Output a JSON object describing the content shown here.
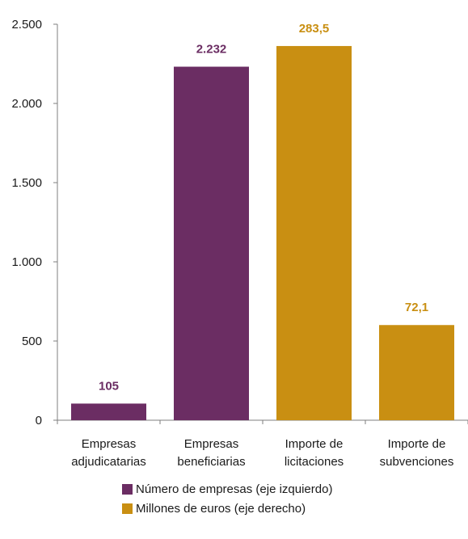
{
  "chart_data": {
    "type": "bar",
    "categories": [
      [
        "Empresas",
        "adjudicatarias"
      ],
      [
        "Empresas",
        "beneficiarias"
      ],
      [
        "Importe de",
        "licitaciones"
      ],
      [
        "Importe de",
        "subvenciones"
      ]
    ],
    "series": [
      {
        "name": "Número de empresas (eje izquierdo)",
        "axis": "left",
        "color": "#6b2d63",
        "values": [
          105,
          2232,
          null,
          null
        ]
      },
      {
        "name": "Millones de euros (eje derecho)",
        "axis": "right",
        "color": "#c98f12",
        "values": [
          null,
          null,
          283.5,
          72.1
        ]
      }
    ],
    "data_labels": [
      "105",
      "2.232",
      "283,5",
      "72,1"
    ],
    "y_left": {
      "ylim": [
        0,
        2500
      ],
      "ticks": [
        0,
        500,
        1000,
        1500,
        2000,
        2500
      ],
      "tick_labels": [
        "0",
        "500",
        "1.000",
        "1.500",
        "2.000",
        "2.500"
      ]
    },
    "y_right": {
      "ylim": [
        0,
        300
      ],
      "ticks": [],
      "tick_labels": []
    },
    "legend_position": "bottom-center",
    "grid": false
  }
}
